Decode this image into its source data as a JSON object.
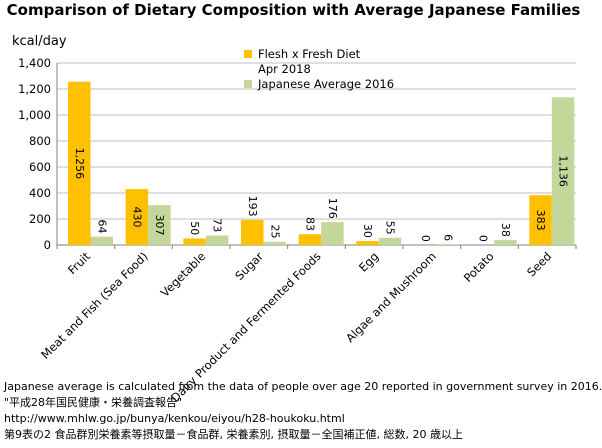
{
  "chart_data": {
    "type": "bar",
    "title": "Comparison of Dietary Composition with Average Japanese Families",
    "ylabel": "kcal/day",
    "xlabel": "",
    "ylim": [
      0,
      1400
    ],
    "yticks": [
      0,
      200,
      400,
      600,
      800,
      1000,
      1200,
      1400
    ],
    "ytick_labels": [
      "0",
      "200",
      "400",
      "600",
      "800",
      "1,000",
      "1,200",
      "1,400"
    ],
    "grid": true,
    "legend_position": "top-right",
    "categories": [
      "Fruit",
      "Meat and Fish (Sea Food)",
      "Vegetable",
      "Sugar",
      "Dairy Product and Fermented Foods",
      "Egg",
      "Algae and Mushroom",
      "Potato",
      "Seed"
    ],
    "series": [
      {
        "name": "Flesh x Fresh Diet Apr 2018",
        "legend_lines": [
          "Flesh x Fresh Diet",
          "Apr 2018"
        ],
        "color": "#FFC000",
        "values": [
          1256,
          430,
          50,
          193,
          83,
          30,
          0,
          0,
          383
        ],
        "labels": [
          "1,256",
          "430",
          "50",
          "193",
          "83",
          "30",
          "0",
          "0",
          "383"
        ]
      },
      {
        "name": "Japanese Average 2016",
        "legend_lines": [
          "Japanese Average 2016"
        ],
        "color": "#C4D79B",
        "values": [
          64,
          307,
          73,
          25,
          176,
          55,
          6,
          38,
          1136
        ],
        "labels": [
          "64",
          "307",
          "73",
          "25",
          "176",
          "55",
          "6",
          "38",
          "1,136"
        ]
      }
    ]
  },
  "notes": [
    "Japanese average is calculated from the data of people over age 20 reported in government survey in 2016.",
    "\"平成28年国民健康・栄養調査報告\"",
    "http://www.mhlw.go.jp/bunya/kenkou/eiyou/h28-houkoku.html",
    "第9表の2  食品群別栄養素等摂取量－食品群, 栄養素別, 摂取量－全国補正値, 総数, 20 歳以上"
  ]
}
